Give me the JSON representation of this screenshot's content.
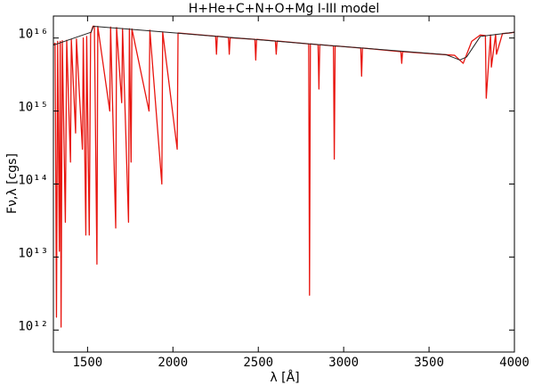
{
  "chart_data": {
    "type": "line",
    "title": "H+He+C+N+O+Mg I-III model",
    "x_label": "λ [Å]",
    "y_label": "Fν,λ [cgs]",
    "log_y": true,
    "xlim": [
      1300,
      4000
    ],
    "xticks": [
      1500,
      2000,
      2500,
      3000,
      3500,
      4000
    ],
    "ylim": [
      500000000000.0,
      2e+16
    ],
    "yticks": [
      {
        "value": 1000000000000.0,
        "label": "10¹²"
      },
      {
        "value": 10000000000000.0,
        "label": "10¹³"
      },
      {
        "value": 100000000000000.0,
        "label": "10¹⁴"
      },
      {
        "value": 1000000000000000.0,
        "label": "10¹⁵"
      },
      {
        "value": 1e+16,
        "label": "10¹⁶"
      }
    ],
    "series": [
      {
        "color": "#e8150f",
        "x": [
          1300,
          1310,
          1318,
          1325,
          1335,
          1340,
          1345,
          1352,
          1370,
          1378,
          1400,
          1405,
          1430,
          1435,
          1470,
          1475,
          1490,
          1495,
          1510,
          1518,
          1532,
          1540,
          1555,
          1560,
          1630,
          1635,
          1665,
          1670,
          1700,
          1705,
          1740,
          1745,
          1755,
          1760,
          1860,
          1865,
          1935,
          1940,
          2025,
          2030,
          2250,
          2255,
          2260,
          2325,
          2330,
          2335,
          2480,
          2485,
          2490,
          2600,
          2605,
          2610,
          2795,
          2800,
          2805,
          2850,
          2855,
          2860,
          2940,
          2945,
          2950,
          3100,
          3105,
          3110,
          3335,
          3340,
          3345,
          3600,
          3650,
          3700,
          3750,
          3800,
          3830,
          3835,
          3860,
          3865,
          3890,
          3895,
          3930,
          3970,
          4000
        ],
        "values": [
          8000000000000000.0,
          8500000000000000.0,
          1500000000000.0,
          9000000000000000.0,
          12000000000000.0,
          9000000000000000.0,
          1100000000000.0,
          9200000000000000.0,
          30000000000000.0,
          9300000000000000.0,
          200000000000000.0,
          9500000000000000.0,
          500000000000000.0,
          9700000000000000.0,
          300000000000000.0,
          1e+16,
          20000000000000.0,
          1.05e+16,
          20000000000000.0,
          1.15e+16,
          1.45e+16,
          1.45e+16,
          8000000000000.0,
          1.44e+16,
          1000000000000000.0,
          1.41e+16,
          25000000000000.0,
          1.39e+16,
          1300000000000000.0,
          1.35e+16,
          30000000000000.0,
          1.34e+16,
          200000000000000.0,
          1.33e+16,
          1000000000000000.0,
          1.28e+16,
          100000000000000.0,
          1.21e+16,
          300000000000000.0,
          1.17e+16,
          1.06e+16,
          6000000000000000.0,
          1.06e+16,
          1.02e+16,
          6000000000000000.0,
          1.01e+16,
          9600000000000000.0,
          5000000000000000.0,
          9600000000000000.0,
          9100000000000000.0,
          6000000000000000.0,
          9100000000000000.0,
          8300000000000000.0,
          3000000000000.0,
          8300000000000000.0,
          8100000000000000.0,
          2000000000000000.0,
          8100000000000000.0,
          7800000000000000.0,
          220000000000000.0,
          7800000000000000.0,
          7300000000000000.0,
          3000000000000000.0,
          7300000000000000.0,
          6500000000000000.0,
          4500000000000000.0,
          6500000000000000.0,
          5900000000000000.0,
          5800000000000000.0,
          4500000000000000.0,
          9000000000000000.0,
          1.1e+16,
          1.08e+16,
          1500000000000000.0,
          1.1e+16,
          4000000000000000.0,
          1.12e+16,
          6000000000000000.0,
          1.15e+16,
          1.17e+16,
          1.2e+16
        ]
      },
      {
        "color": "#222222",
        "x": [
          1300,
          1520,
          1535,
          2000,
          2800,
          3600,
          3680,
          3720,
          3800,
          4000
        ],
        "values": [
          8000000000000000.0,
          1.2e+16,
          1.45e+16,
          1.18e+16,
          8300000000000000.0,
          5900000000000000.0,
          5000000000000000.0,
          5500000000000000.0,
          1.05e+16,
          1.2e+16
        ]
      }
    ]
  }
}
